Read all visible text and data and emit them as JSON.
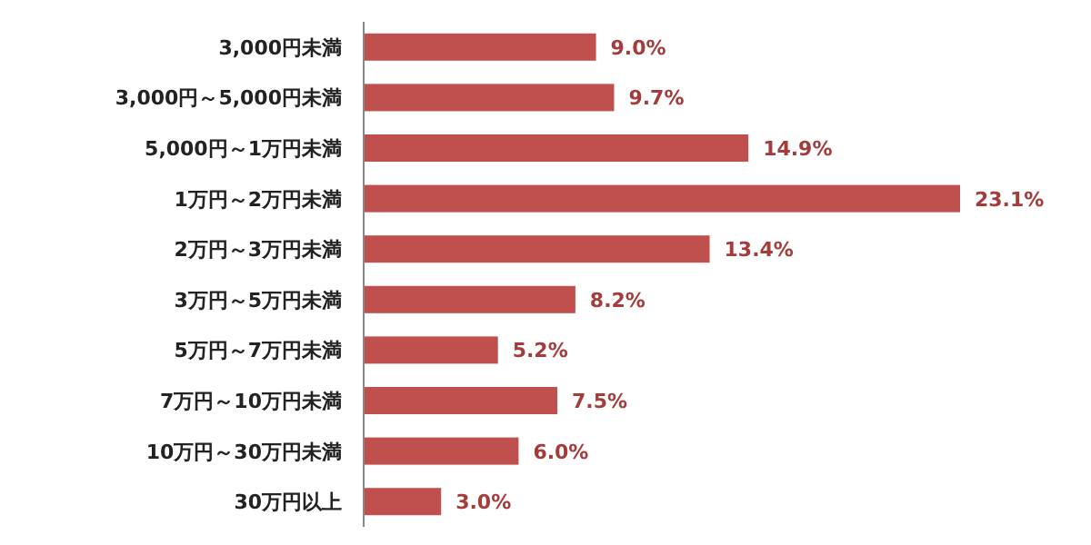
{
  "chart_data": {
    "type": "bar",
    "orientation": "horizontal",
    "categories": [
      "3,000円未満",
      "3,000円～5,000円未満",
      "5,000円～1万円未満",
      "1万円～2万円未満",
      "2万円～3万円未満",
      "3万円～5万円未満",
      "5万円～7万円未満",
      "7万円～10万円未満",
      "10万円～30万円未満",
      "30万円以上"
    ],
    "values": [
      9.0,
      9.7,
      14.9,
      23.1,
      13.4,
      8.2,
      5.2,
      7.5,
      6.0,
      3.0
    ],
    "value_labels": [
      "9.0%",
      "9.7%",
      "14.9%",
      "23.1%",
      "13.4%",
      "8.2%",
      "5.2%",
      "7.5%",
      "6.0%",
      "3.0%"
    ],
    "color": "#c0504d"
  }
}
